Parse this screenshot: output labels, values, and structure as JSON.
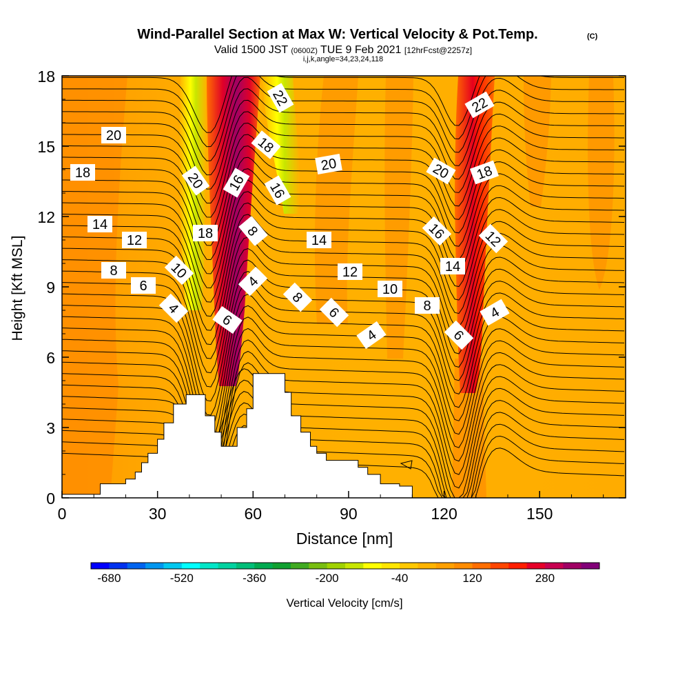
{
  "chart_data": {
    "type": "heatmap",
    "title": "Wind-Parallel Section at Max W: Vertical Velocity & Pot.Temp.",
    "title_mark": "(C)",
    "subtitle": {
      "valid": "Valid 1500 JST",
      "utc": "(0600Z)",
      "date": "TUE 9 Feb 2021",
      "fcst": "[12hrFcst@2257z]"
    },
    "indices": "i,j,k,angle=34,23,24,118",
    "xlabel": "Distance [nm]",
    "ylabel": "Height [Kft MSL]",
    "xlim": [
      0,
      177
    ],
    "ylim": [
      0,
      18
    ],
    "xticks": [
      "0",
      "30",
      "60",
      "90",
      "120",
      "150"
    ],
    "xtick_values": [
      0,
      30,
      60,
      90,
      120,
      150
    ],
    "yticks": [
      "0",
      "3",
      "6",
      "9",
      "12",
      "15",
      "18"
    ],
    "ytick_values": [
      0,
      3,
      6,
      9,
      12,
      15,
      18
    ],
    "colorbar": {
      "label": "Vertical Velocity [cm/s]",
      "tick_labels": [
        "-680",
        "-520",
        "-360",
        "-200",
        "-40",
        "120",
        "280"
      ],
      "tick_values": [
        -680,
        -520,
        -360,
        -200,
        -40,
        120,
        280
      ],
      "min": -720,
      "step": 40,
      "colors": [
        "#0000ff",
        "#0032f0",
        "#0064f0",
        "#0096f0",
        "#00c8f0",
        "#00ffff",
        "#00e6c8",
        "#00d2a0",
        "#00be78",
        "#00aa50",
        "#10a030",
        "#40aa20",
        "#78be10",
        "#a0d200",
        "#c8e600",
        "#ffff00",
        "#ffe600",
        "#ffc800",
        "#ffb400",
        "#ffa000",
        "#ff8c00",
        "#ff6e00",
        "#ff4600",
        "#ff1e00",
        "#e60028",
        "#c80050",
        "#a00064",
        "#820078"
      ]
    },
    "contour_labels": [
      "22",
      "22",
      "20",
      "20",
      "20",
      "20",
      "18",
      "18",
      "18",
      "18",
      "18",
      "16",
      "16",
      "16",
      "14",
      "14",
      "14",
      "12",
      "12",
      "12",
      "10",
      "10",
      "8",
      "8",
      "8",
      "8",
      "6",
      "6",
      "6",
      "6",
      "4",
      "4",
      "4",
      "4"
    ],
    "terrain": [
      [
        0,
        0.15
      ],
      [
        12,
        0.15
      ],
      [
        12,
        0.6
      ],
      [
        20,
        0.6
      ],
      [
        20,
        0.8
      ],
      [
        23,
        0.8
      ],
      [
        23,
        1.1
      ],
      [
        25,
        1.1
      ],
      [
        25,
        1.5
      ],
      [
        27,
        1.5
      ],
      [
        27,
        1.9
      ],
      [
        30,
        1.9
      ],
      [
        30,
        2.5
      ],
      [
        32,
        2.5
      ],
      [
        32,
        3.2
      ],
      [
        35,
        3.2
      ],
      [
        35,
        4.0
      ],
      [
        39,
        4.0
      ],
      [
        39,
        4.4
      ],
      [
        45,
        4.4
      ],
      [
        45,
        3.5
      ],
      [
        48,
        3.5
      ],
      [
        48,
        2.8
      ],
      [
        50,
        2.8
      ],
      [
        50,
        2.2
      ],
      [
        55,
        2.2
      ],
      [
        55,
        3.0
      ],
      [
        58,
        3.0
      ],
      [
        58,
        3.8
      ],
      [
        60,
        3.8
      ],
      [
        60,
        5.3
      ],
      [
        70,
        5.3
      ],
      [
        70,
        4.5
      ],
      [
        72,
        4.5
      ],
      [
        72,
        3.5
      ],
      [
        75,
        3.5
      ],
      [
        75,
        2.8
      ],
      [
        78,
        2.8
      ],
      [
        78,
        2.2
      ],
      [
        80,
        2.2
      ],
      [
        80,
        1.9
      ],
      [
        83,
        1.9
      ],
      [
        83,
        1.6
      ],
      [
        90,
        1.6
      ],
      [
        90,
        1.6
      ],
      [
        93,
        1.6
      ],
      [
        93,
        1.3
      ],
      [
        96,
        1.3
      ],
      [
        96,
        1.0
      ],
      [
        100,
        1.0
      ],
      [
        100,
        0.6
      ],
      [
        106,
        0.6
      ],
      [
        106,
        0.5
      ],
      [
        110,
        0.5
      ],
      [
        110,
        0
      ],
      [
        177,
        0
      ]
    ]
  }
}
